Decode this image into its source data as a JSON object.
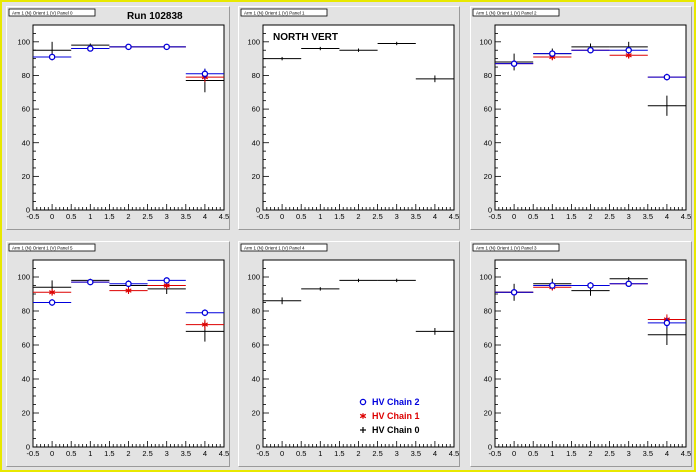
{
  "run_label": "Run 102838",
  "north_label": "NORTH VERT",
  "colors": {
    "chain2": "#0000dd",
    "chain1": "#dd0000",
    "chain0": "#000000"
  },
  "legend": [
    {
      "label": "HV Chain 2",
      "marker": "circle",
      "color": "#0000dd"
    },
    {
      "label": "HV Chain 1",
      "marker": "star",
      "color": "#dd0000"
    },
    {
      "label": "HV Chain 0",
      "marker": "plus",
      "color": "#000000"
    }
  ],
  "chart_data": [
    {
      "type": "scatter",
      "title": "Arm 1 (N) Orient 1 (V) Panel 0",
      "xlim": [
        -0.5,
        4.5
      ],
      "ylim": [
        0,
        110
      ],
      "xticks": [
        "-0.5",
        "0",
        "0.5",
        "1",
        "1.5",
        "2",
        "2.5",
        "3",
        "3.5",
        "4",
        "4.5"
      ],
      "yticks": [
        "0",
        "20",
        "40",
        "60",
        "80",
        "100"
      ],
      "series": [
        {
          "marker": "plus",
          "color": "#000000",
          "x": [
            0,
            1,
            2,
            3,
            4
          ],
          "y": [
            95,
            98,
            97,
            97,
            77
          ],
          "yerr": [
            5,
            1,
            1,
            1,
            7
          ]
        },
        {
          "marker": "star",
          "color": "#dd0000",
          "x": [
            0,
            1,
            2,
            3,
            4
          ],
          "y": [
            91,
            96,
            97,
            97,
            79
          ],
          "yerr": [
            2,
            1,
            1,
            1,
            3
          ]
        },
        {
          "marker": "circle",
          "color": "#0000dd",
          "x": [
            0,
            1,
            2,
            3,
            4
          ],
          "y": [
            91,
            96,
            97,
            97,
            81
          ],
          "yerr": [
            2,
            1,
            1,
            1,
            3
          ]
        }
      ]
    },
    {
      "type": "scatter",
      "title": "Arm 1 (N) Orient 1 (V) Panel 1",
      "xlim": [
        -0.5,
        4.5
      ],
      "ylim": [
        0,
        110
      ],
      "xticks": [
        "-0.5",
        "0",
        "0.5",
        "1",
        "1.5",
        "2",
        "2.5",
        "3",
        "3.5",
        "4",
        "4.5"
      ],
      "yticks": [
        "0",
        "20",
        "40",
        "60",
        "80",
        "100"
      ],
      "series": [
        {
          "marker": "plus",
          "color": "#000000",
          "x": [
            0,
            1,
            2,
            3,
            4
          ],
          "y": [
            90,
            96,
            95,
            99,
            78
          ],
          "yerr": [
            1,
            1,
            1,
            1,
            2
          ]
        }
      ]
    },
    {
      "type": "scatter",
      "title": "Arm 1 (N) Orient 1 (V) Panel 2",
      "xlim": [
        -0.5,
        4.5
      ],
      "ylim": [
        0,
        110
      ],
      "xticks": [
        "-0.5",
        "0",
        "0.5",
        "1",
        "1.5",
        "2",
        "2.5",
        "3",
        "3.5",
        "4",
        "4.5"
      ],
      "yticks": [
        "0",
        "20",
        "40",
        "60",
        "80",
        "100"
      ],
      "series": [
        {
          "marker": "plus",
          "color": "#000000",
          "x": [
            0,
            1,
            2,
            3,
            4
          ],
          "y": [
            88,
            93,
            97,
            97,
            62
          ],
          "yerr": [
            5,
            3,
            2,
            3,
            6
          ]
        },
        {
          "marker": "star",
          "color": "#dd0000",
          "x": [
            0,
            1,
            2,
            3,
            4
          ],
          "y": [
            87,
            91,
            95,
            92,
            79
          ],
          "yerr": [
            2,
            2,
            1,
            2,
            2
          ]
        },
        {
          "marker": "circle",
          "color": "#0000dd",
          "x": [
            0,
            1,
            2,
            3,
            4
          ],
          "y": [
            87,
            93,
            95,
            95,
            79
          ],
          "yerr": [
            2,
            2,
            1,
            2,
            2
          ]
        }
      ]
    },
    {
      "type": "scatter",
      "title": "Arm 1 (N) Orient 1 (V) Panel 5",
      "xlim": [
        -0.5,
        4.5
      ],
      "ylim": [
        0,
        110
      ],
      "xticks": [
        "-0.5",
        "0",
        "0.5",
        "1",
        "1.5",
        "2",
        "2.5",
        "3",
        "3.5",
        "4",
        "4.5"
      ],
      "yticks": [
        "0",
        "20",
        "40",
        "60",
        "80",
        "100"
      ],
      "series": [
        {
          "marker": "plus",
          "color": "#000000",
          "x": [
            0,
            1,
            2,
            3,
            4
          ],
          "y": [
            94,
            98,
            95,
            93,
            68
          ],
          "yerr": [
            4,
            1,
            3,
            3,
            6
          ]
        },
        {
          "marker": "star",
          "color": "#dd0000",
          "x": [
            0,
            1,
            2,
            3,
            4
          ],
          "y": [
            91,
            97,
            92,
            95,
            72
          ],
          "yerr": [
            2,
            1,
            2,
            2,
            3
          ]
        },
        {
          "marker": "circle",
          "color": "#0000dd",
          "x": [
            0,
            1,
            2,
            3,
            4
          ],
          "y": [
            85,
            97,
            96,
            98,
            79
          ],
          "yerr": [
            2,
            1,
            2,
            1,
            2
          ]
        }
      ]
    },
    {
      "type": "scatter",
      "title": "Arm 1 (N) Orient 1 (V) Panel 4",
      "xlim": [
        -0.5,
        4.5
      ],
      "ylim": [
        0,
        110
      ],
      "xticks": [
        "-0.5",
        "0",
        "0.5",
        "1",
        "1.5",
        "2",
        "2.5",
        "3",
        "3.5",
        "4",
        "4.5"
      ],
      "yticks": [
        "0",
        "20",
        "40",
        "60",
        "80",
        "100"
      ],
      "series": [
        {
          "marker": "plus",
          "color": "#000000",
          "x": [
            0,
            1,
            2,
            3,
            4
          ],
          "y": [
            86,
            93,
            98,
            98,
            68
          ],
          "yerr": [
            2,
            1,
            1,
            1,
            2
          ]
        }
      ]
    },
    {
      "type": "scatter",
      "title": "Arm 1 (N) Orient 1 (V) Panel 3",
      "xlim": [
        -0.5,
        4.5
      ],
      "ylim": [
        0,
        110
      ],
      "xticks": [
        "-0.5",
        "0",
        "0.5",
        "1",
        "1.5",
        "2",
        "2.5",
        "3",
        "3.5",
        "4",
        "4.5"
      ],
      "yticks": [
        "0",
        "20",
        "40",
        "60",
        "80",
        "100"
      ],
      "series": [
        {
          "marker": "plus",
          "color": "#000000",
          "x": [
            0,
            1,
            2,
            3,
            4
          ],
          "y": [
            91,
            96,
            92,
            99,
            66
          ],
          "yerr": [
            5,
            3,
            3,
            1,
            6
          ]
        },
        {
          "marker": "star",
          "color": "#dd0000",
          "x": [
            0,
            1,
            2,
            3,
            4
          ],
          "y": [
            91,
            94,
            95,
            96,
            75
          ],
          "yerr": [
            2,
            2,
            2,
            1,
            3
          ]
        },
        {
          "marker": "circle",
          "color": "#0000dd",
          "x": [
            0,
            1,
            2,
            3,
            4
          ],
          "y": [
            91,
            95,
            95,
            96,
            73
          ],
          "yerr": [
            2,
            2,
            2,
            1,
            3
          ]
        }
      ]
    }
  ]
}
